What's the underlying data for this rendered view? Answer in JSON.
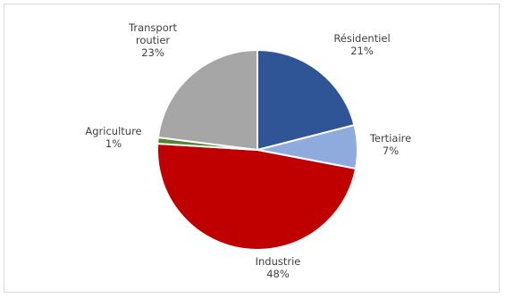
{
  "chart_data": {
    "type": "pie",
    "slices": [
      {
        "category": "Résidentiel",
        "label_lines": [
          "Résidentiel"
        ],
        "value": 21,
        "value_label": "21%",
        "color": "#2f5597"
      },
      {
        "category": "Tertiaire",
        "label_lines": [
          "Tertiaire"
        ],
        "value": 7,
        "value_label": "7%",
        "color": "#8faadc"
      },
      {
        "category": "Industrie",
        "label_lines": [
          "Industrie"
        ],
        "value": 48,
        "value_label": "48%",
        "color": "#c00000"
      },
      {
        "category": "Agriculture",
        "label_lines": [
          "Agriculture"
        ],
        "value": 1,
        "value_label": "1%",
        "color": "#548235"
      },
      {
        "category": "Transport routier",
        "label_lines": [
          "Transport",
          "routier"
        ],
        "value": 23,
        "value_label": "23%",
        "color": "#a6a6a6"
      }
    ],
    "start_angle_deg": 0,
    "direction": "clockwise",
    "legend": "none",
    "data_labels": "outside"
  }
}
